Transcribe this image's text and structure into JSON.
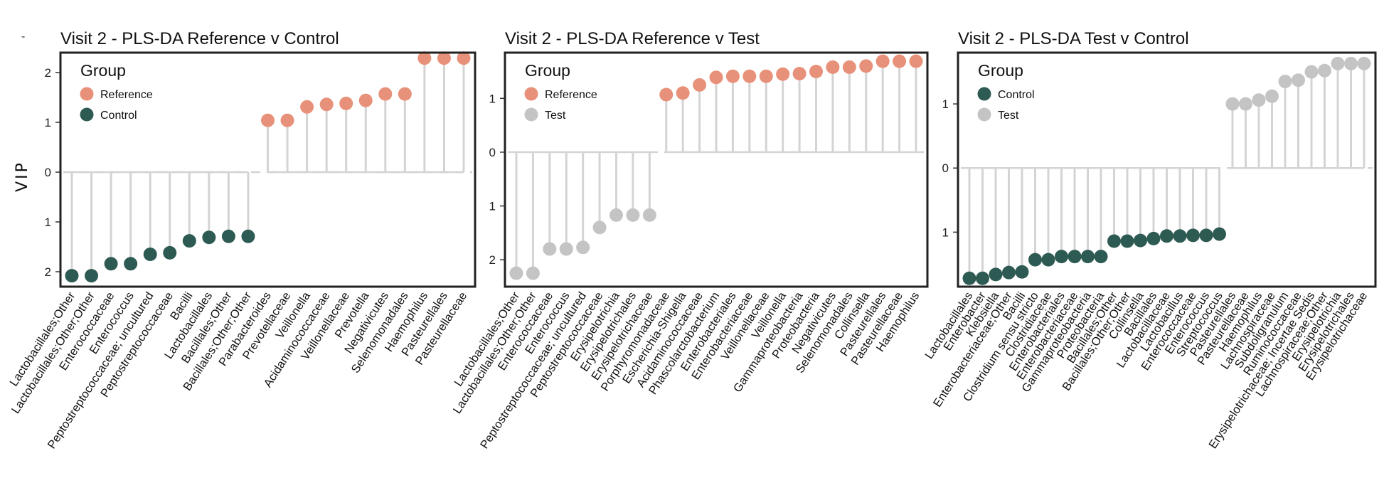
{
  "figure": {
    "corner_mark": "-",
    "y_axis_label": "VIP",
    "colors": {
      "Reference": "#E8917A",
      "Control": "#2D5A52",
      "Test": "#C4C4C4",
      "stem": "#D4D4D4",
      "frame": "#222222"
    }
  },
  "chart_data": [
    {
      "type": "lollipop",
      "title": "Visit 2 - PLS-DA Reference v Control",
      "ylabel": "VIP",
      "ylim": [
        -2.3,
        2.4
      ],
      "yticks": [
        -2,
        -1,
        0,
        1,
        2
      ],
      "ytick_labels": [
        "2",
        "1",
        "0",
        "1",
        "2"
      ],
      "legend": {
        "title": "Group",
        "entries": [
          "Reference",
          "Control"
        ],
        "position": "top-left"
      },
      "points": [
        {
          "label": "Lactobacillales;Other",
          "value": -2.08,
          "group": "Control"
        },
        {
          "label": "Lactobacillales;Other;Other",
          "value": -2.08,
          "group": "Control"
        },
        {
          "label": "Enterococcaceae",
          "value": -1.84,
          "group": "Control"
        },
        {
          "label": "Enterococcus",
          "value": -1.84,
          "group": "Control"
        },
        {
          "label": "Peptostreptococcaceae; uncultured",
          "value": -1.65,
          "group": "Control"
        },
        {
          "label": "Peptostreptococcaceae",
          "value": -1.62,
          "group": "Control"
        },
        {
          "label": "Bacilli",
          "value": -1.38,
          "group": "Control"
        },
        {
          "label": "Lactobacillales",
          "value": -1.31,
          "group": "Control"
        },
        {
          "label": "Bacillales;Other",
          "value": -1.29,
          "group": "Control"
        },
        {
          "label": "Bacillales;Other;Other",
          "value": -1.29,
          "group": "Control"
        },
        {
          "label": "Parabacteroides",
          "value": 1.04,
          "group": "Reference"
        },
        {
          "label": "Prevotellaceae",
          "value": 1.04,
          "group": "Reference"
        },
        {
          "label": "Veillonella",
          "value": 1.31,
          "group": "Reference"
        },
        {
          "label": "Acidaminococcaceae",
          "value": 1.36,
          "group": "Reference"
        },
        {
          "label": "Veillonellaceae",
          "value": 1.38,
          "group": "Reference"
        },
        {
          "label": "Prevotella",
          "value": 1.44,
          "group": "Reference"
        },
        {
          "label": "Negativicutes",
          "value": 1.57,
          "group": "Reference"
        },
        {
          "label": "Selenomonadales",
          "value": 1.57,
          "group": "Reference"
        },
        {
          "label": "Haemophilus",
          "value": 2.29,
          "group": "Reference"
        },
        {
          "label": "Pasteurellales",
          "value": 2.29,
          "group": "Reference"
        },
        {
          "label": "Pasteurellaceae",
          "value": 2.29,
          "group": "Reference"
        }
      ]
    },
    {
      "type": "lollipop",
      "title": "Visit 2 - PLS-DA Reference v Test",
      "ylabel": "VIP",
      "ylim": [
        -2.5,
        1.85
      ],
      "yticks": [
        -2,
        -1,
        0,
        1
      ],
      "ytick_labels": [
        "2",
        "1",
        "0",
        "1"
      ],
      "legend": {
        "title": "Group",
        "entries": [
          "Reference",
          "Test"
        ],
        "position": "top-left"
      },
      "points": [
        {
          "label": "Lactobacillales;Other",
          "value": -2.25,
          "group": "Test"
        },
        {
          "label": "Lactobacillales;Other;Other",
          "value": -2.25,
          "group": "Test"
        },
        {
          "label": "Enterococcaceae",
          "value": -1.8,
          "group": "Test"
        },
        {
          "label": "Enterococcus",
          "value": -1.8,
          "group": "Test"
        },
        {
          "label": "Peptostreptococcaceae; uncultured",
          "value": -1.77,
          "group": "Test"
        },
        {
          "label": "Peptostreptococcaceae",
          "value": -1.4,
          "group": "Test"
        },
        {
          "label": "Erysipelotrichia",
          "value": -1.17,
          "group": "Test"
        },
        {
          "label": "Erysipelotrichales",
          "value": -1.17,
          "group": "Test"
        },
        {
          "label": "Erysipelotrichaceae",
          "value": -1.17,
          "group": "Test"
        },
        {
          "label": "Porphyromonadaceae",
          "value": 1.07,
          "group": "Reference"
        },
        {
          "label": "Escherichia-Shigella",
          "value": 1.1,
          "group": "Reference"
        },
        {
          "label": "Acidaminococcaceae",
          "value": 1.25,
          "group": "Reference"
        },
        {
          "label": "Phascolarctobacterium",
          "value": 1.39,
          "group": "Reference"
        },
        {
          "label": "Enterobacteriales",
          "value": 1.41,
          "group": "Reference"
        },
        {
          "label": "Enterobacteriaceae",
          "value": 1.41,
          "group": "Reference"
        },
        {
          "label": "Veillonellaceae",
          "value": 1.41,
          "group": "Reference"
        },
        {
          "label": "Veillonella",
          "value": 1.45,
          "group": "Reference"
        },
        {
          "label": "Gammaproteobacteria",
          "value": 1.46,
          "group": "Reference"
        },
        {
          "label": "Proteobacteria",
          "value": 1.5,
          "group": "Reference"
        },
        {
          "label": "Negativicutes",
          "value": 1.58,
          "group": "Reference"
        },
        {
          "label": "Selenomonadales",
          "value": 1.58,
          "group": "Reference"
        },
        {
          "label": "Collinsella",
          "value": 1.6,
          "group": "Reference"
        },
        {
          "label": "Pasteurellales",
          "value": 1.69,
          "group": "Reference"
        },
        {
          "label": "Pasteurellaceae",
          "value": 1.69,
          "group": "Reference"
        },
        {
          "label": "Haemophilus",
          "value": 1.69,
          "group": "Reference"
        }
      ]
    },
    {
      "type": "lollipop",
      "title": "Visit 2 - PLS-DA Test v Control",
      "ylabel": "VIP",
      "ylim": [
        -1.85,
        1.8
      ],
      "yticks": [
        -1,
        0,
        1
      ],
      "ytick_labels": [
        "1",
        "0",
        "1"
      ],
      "legend": {
        "title": "Group",
        "entries": [
          "Control",
          "Test"
        ],
        "position": "top-left"
      },
      "points": [
        {
          "label": "Lactobacillales",
          "value": -1.72,
          "group": "Control"
        },
        {
          "label": "Enterobacter",
          "value": -1.72,
          "group": "Control"
        },
        {
          "label": "Klebsiella",
          "value": -1.66,
          "group": "Control"
        },
        {
          "label": "Enterobacteriaceae;Other",
          "value": -1.63,
          "group": "Control"
        },
        {
          "label": "Bacilli",
          "value": -1.62,
          "group": "Control"
        },
        {
          "label": "Clostridium sensu stricto",
          "value": -1.43,
          "group": "Control"
        },
        {
          "label": "Clostridiaceae",
          "value": -1.43,
          "group": "Control"
        },
        {
          "label": "Enterobacteriales",
          "value": -1.38,
          "group": "Control"
        },
        {
          "label": "Enterobacteriaceae",
          "value": -1.38,
          "group": "Control"
        },
        {
          "label": "Gammaproteobacteria",
          "value": -1.38,
          "group": "Control"
        },
        {
          "label": "Proteobacteria",
          "value": -1.38,
          "group": "Control"
        },
        {
          "label": "Bacillales;Other",
          "value": -1.14,
          "group": "Control"
        },
        {
          "label": "Bacillales;Other;Other",
          "value": -1.14,
          "group": "Control"
        },
        {
          "label": "Collinsella",
          "value": -1.13,
          "group": "Control"
        },
        {
          "label": "Bacillales",
          "value": -1.1,
          "group": "Control"
        },
        {
          "label": "Lactobacillaceae",
          "value": -1.06,
          "group": "Control"
        },
        {
          "label": "Lactobacillus",
          "value": -1.06,
          "group": "Control"
        },
        {
          "label": "Enterococcaceae",
          "value": -1.05,
          "group": "Control"
        },
        {
          "label": "Enterococcus",
          "value": -1.05,
          "group": "Control"
        },
        {
          "label": "Streptococcus",
          "value": -1.03,
          "group": "Control"
        },
        {
          "label": "Pasteurellales",
          "value": 1.0,
          "group": "Test"
        },
        {
          "label": "Pasteurellaceae",
          "value": 1.0,
          "group": "Test"
        },
        {
          "label": "Haemophilus",
          "value": 1.06,
          "group": "Test"
        },
        {
          "label": "Lachnospiraceae",
          "value": 1.12,
          "group": "Test"
        },
        {
          "label": "Subdoligranulum",
          "value": 1.35,
          "group": "Test"
        },
        {
          "label": "Ruminococcaceae",
          "value": 1.37,
          "group": "Test"
        },
        {
          "label": "Erysipelotrichaceae; Incertae Sedis",
          "value": 1.5,
          "group": "Test"
        },
        {
          "label": "Lachnospiraceae;Other",
          "value": 1.52,
          "group": "Test"
        },
        {
          "label": "Erysipelotrichia",
          "value": 1.63,
          "group": "Test"
        },
        {
          "label": "Erysipelotrichales",
          "value": 1.63,
          "group": "Test"
        },
        {
          "label": "Erysipelotrichaceae",
          "value": 1.63,
          "group": "Test"
        }
      ]
    }
  ]
}
